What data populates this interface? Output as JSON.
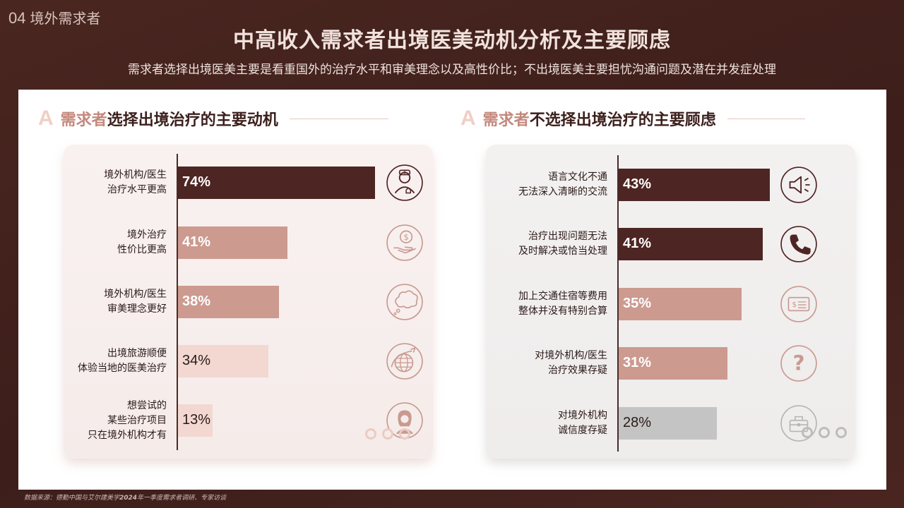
{
  "header": {
    "section_number": "04",
    "section_name": "境外需求者",
    "title": "中高收入需求者出境医美动机分析及主要顾虑",
    "subtitle": "需求者选择出境医美主要是看重国外的治疗水平和审美理念以及高性价比；不出境医美主要担忧沟通问题及潜在并发症处理"
  },
  "left_section": {
    "badge": "A",
    "title_highlight": "需求者",
    "title_rest": "选择出境治疗的主要动机"
  },
  "right_section": {
    "badge": "A",
    "title_highlight": "需求者",
    "title_rest": "不选择出境治疗的主要顾虑"
  },
  "chart_data": [
    {
      "type": "bar",
      "orientation": "horizontal",
      "categories": [
        "境外机构/医生\n治疗水平更高",
        "境外治疗\n性价比更高",
        "境外机构/医生\n审美理念更好",
        "出境旅游顺便\n体验当地的医美治疗",
        "想尝试的\n某些治疗项目\n只在境外机构才有"
      ],
      "values": [
        74,
        41,
        38,
        34,
        13
      ],
      "value_labels": [
        "74%",
        "41%",
        "38%",
        "34%",
        "13%"
      ],
      "colors": [
        "#4d2522",
        "#cc9a8f",
        "#cc9a8f",
        "#f2d8d1",
        "#f2d8d1"
      ],
      "label_colors": [
        "#ffffff",
        "#ffffff",
        "#ffffff",
        "#2a1a17",
        "#2a1a17"
      ],
      "icons": [
        "doctor-icon",
        "money-hand-icon",
        "thought-bubble-icon",
        "globe-plane-icon",
        "woman-avatar-icon"
      ],
      "xlim": [
        0,
        100
      ]
    },
    {
      "type": "bar",
      "orientation": "horizontal",
      "categories": [
        "语言文化不通\n无法深入清晰的交流",
        "治疗出现问题无法\n及时解决或恰当处理",
        "加上交通住宿等费用\n整体并没有特别合算",
        "对境外机构/医生\n治疗效果存疑",
        "对境外机构\n诚信度存疑"
      ],
      "values": [
        43,
        41,
        35,
        31,
        28
      ],
      "value_labels": [
        "43%",
        "41%",
        "35%",
        "31%",
        "28%"
      ],
      "colors": [
        "#4d2522",
        "#4d2522",
        "#cc9a8f",
        "#cc9a8f",
        "#c4c4c4"
      ],
      "label_colors": [
        "#ffffff",
        "#ffffff",
        "#ffffff",
        "#ffffff",
        "#2a1a17"
      ],
      "icons": [
        "speaker-icon",
        "phone-icon",
        "bill-icon",
        "question-icon",
        "briefcase-icon"
      ],
      "xlim": [
        0,
        100
      ]
    }
  ],
  "footer": {
    "source_prefix": "数据来源：德勤中国与艾尔建美学",
    "source_year": "2024",
    "source_suffix": "年一季度需求者调研、专家访谈"
  }
}
